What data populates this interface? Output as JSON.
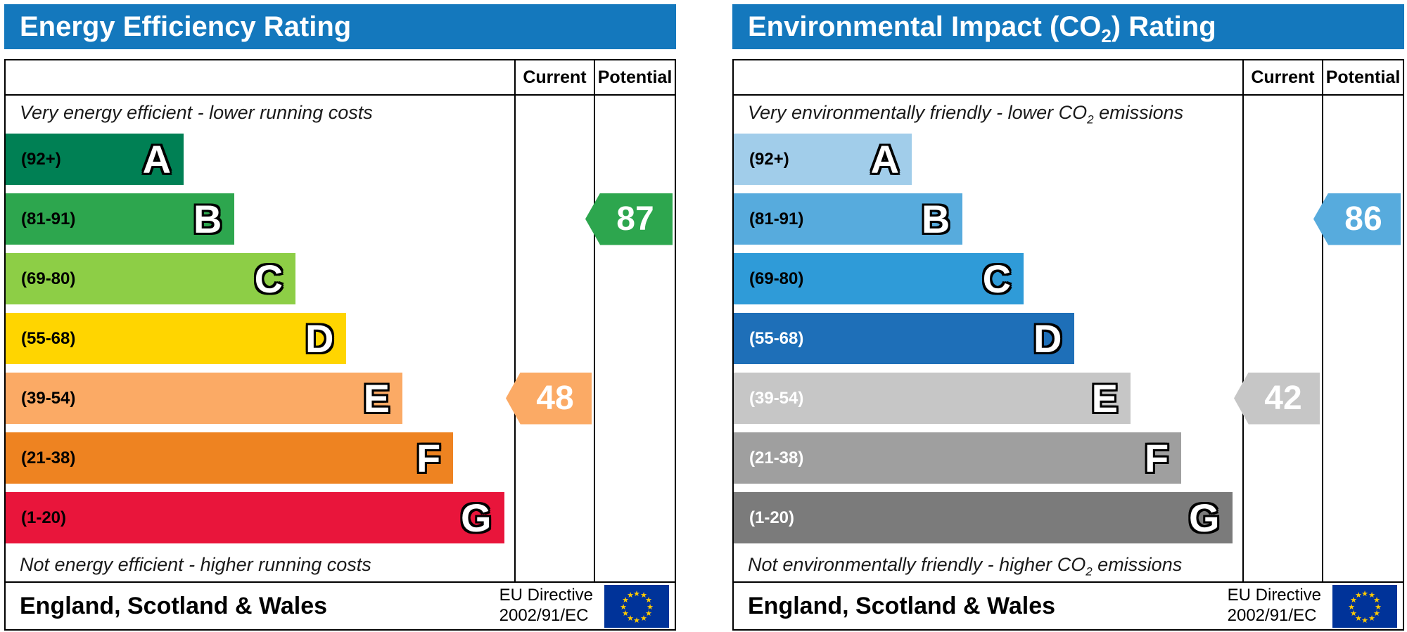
{
  "chart_data": [
    {
      "type": "bar",
      "subtype": "epc-energy-efficiency-rating",
      "title": "Energy Efficiency Rating",
      "categories": [
        "A (92+)",
        "B (81-91)",
        "C (69-80)",
        "D (55-68)",
        "E (39-54)",
        "F (21-38)",
        "G (1-20)"
      ],
      "band_relative_widths_pct": [
        35,
        45,
        57,
        67,
        78,
        88,
        98
      ],
      "current": {
        "value": 48,
        "band": "E"
      },
      "potential": {
        "value": 87,
        "band": "B"
      },
      "notes": [
        "Very energy efficient - lower running costs",
        "Not energy efficient - higher running costs"
      ],
      "region": "England, Scotland & Wales",
      "directive": "EU Directive 2002/91/EC",
      "legend_position": "right-columns",
      "columns": [
        "Current",
        "Potential"
      ]
    },
    {
      "type": "bar",
      "subtype": "epc-environmental-impact-co2-rating",
      "title": "Environmental Impact (CO2) Rating",
      "categories": [
        "A (92+)",
        "B (81-91)",
        "C (69-80)",
        "D (55-68)",
        "E (39-54)",
        "F (21-38)",
        "G (1-20)"
      ],
      "band_relative_widths_pct": [
        35,
        45,
        57,
        67,
        78,
        88,
        98
      ],
      "current": {
        "value": 42,
        "band": "E"
      },
      "potential": {
        "value": 86,
        "band": "B"
      },
      "notes": [
        "Very environmentally friendly - lower CO2 emissions",
        "Not environmentally friendly - higher CO2 emissions"
      ],
      "region": "England, Scotland & Wales",
      "directive": "EU Directive 2002/91/EC",
      "legend_position": "right-columns",
      "columns": [
        "Current",
        "Potential"
      ]
    }
  ],
  "charts": [
    {
      "name": "energy-efficiency-rating",
      "header_color": "#1478bd",
      "title_parts": [
        {
          "t": "Energy Efficiency Rating"
        }
      ],
      "columns": {
        "current": "Current",
        "potential": "Potential"
      },
      "top_note_parts": [
        {
          "t": "Very energy efficient - lower running costs"
        }
      ],
      "bottom_note_parts": [
        {
          "t": "Not energy efficient - higher running costs"
        }
      ],
      "bands": [
        {
          "letter": "A",
          "range": "(92+)",
          "color": "#008054",
          "width_pct": 35,
          "text_color": "#000000"
        },
        {
          "letter": "B",
          "range": "(81-91)",
          "color": "#2da64e",
          "width_pct": 45,
          "text_color": "#000000"
        },
        {
          "letter": "C",
          "range": "(69-80)",
          "color": "#8dce46",
          "width_pct": 57,
          "text_color": "#000000"
        },
        {
          "letter": "D",
          "range": "(55-68)",
          "color": "#ffd500",
          "width_pct": 67,
          "text_color": "#000000"
        },
        {
          "letter": "E",
          "range": "(39-54)",
          "color": "#fbaa65",
          "width_pct": 78,
          "text_color": "#000000"
        },
        {
          "letter": "F",
          "range": "(21-38)",
          "color": "#ee8321",
          "width_pct": 88,
          "text_color": "#000000"
        },
        {
          "letter": "G",
          "range": "(1-20)",
          "color": "#e9153b",
          "width_pct": 98,
          "text_color": "#000000"
        }
      ],
      "current": {
        "value": "48",
        "band": "E",
        "band_index": 4,
        "color": "#fbaa65",
        "text_color": "#ffffff"
      },
      "potential": {
        "value": "87",
        "band": "B",
        "band_index": 1,
        "color": "#2da64e",
        "text_color": "#ffffff"
      },
      "footer": {
        "region": "England, Scotland & Wales",
        "directive_lines": [
          "EU Directive",
          "2002/91/EC"
        ],
        "flag_colors": {
          "field": "#003399",
          "stars": "#ffcc00"
        }
      }
    },
    {
      "name": "environmental-impact-co2-rating",
      "header_color": "#1478bd",
      "title_parts": [
        {
          "t": "Environmental Impact (CO"
        },
        {
          "t": "2",
          "sub": true
        },
        {
          "t": ") Rating"
        }
      ],
      "columns": {
        "current": "Current",
        "potential": "Potential"
      },
      "top_note_parts": [
        {
          "t": "Very environmentally friendly - lower CO"
        },
        {
          "t": "2",
          "sub": true
        },
        {
          "t": " emissions"
        }
      ],
      "bottom_note_parts": [
        {
          "t": "Not environmentally friendly - higher CO"
        },
        {
          "t": "2",
          "sub": true
        },
        {
          "t": " emissions"
        }
      ],
      "bands": [
        {
          "letter": "A",
          "range": "(92+)",
          "color": "#a1cdea",
          "width_pct": 35,
          "text_color": "#000000"
        },
        {
          "letter": "B",
          "range": "(81-91)",
          "color": "#57abdd",
          "width_pct": 45,
          "text_color": "#000000"
        },
        {
          "letter": "C",
          "range": "(69-80)",
          "color": "#2f9bd8",
          "width_pct": 57,
          "text_color": "#000000"
        },
        {
          "letter": "D",
          "range": "(55-68)",
          "color": "#1e6fb8",
          "width_pct": 67,
          "text_color": "#ffffff"
        },
        {
          "letter": "E",
          "range": "(39-54)",
          "color": "#c6c6c6",
          "width_pct": 78,
          "text_color": "#ffffff"
        },
        {
          "letter": "F",
          "range": "(21-38)",
          "color": "#9f9f9f",
          "width_pct": 88,
          "text_color": "#ffffff"
        },
        {
          "letter": "G",
          "range": "(1-20)",
          "color": "#7b7b7b",
          "width_pct": 98,
          "text_color": "#ffffff"
        }
      ],
      "current": {
        "value": "42",
        "band": "E",
        "band_index": 4,
        "color": "#c6c6c6",
        "text_color": "#ffffff"
      },
      "potential": {
        "value": "86",
        "band": "B",
        "band_index": 1,
        "color": "#57abdd",
        "text_color": "#ffffff"
      },
      "footer": {
        "region": "England, Scotland & Wales",
        "directive_lines": [
          "EU Directive",
          "2002/91/EC"
        ],
        "flag_colors": {
          "field": "#003399",
          "stars": "#ffcc00"
        }
      }
    }
  ]
}
